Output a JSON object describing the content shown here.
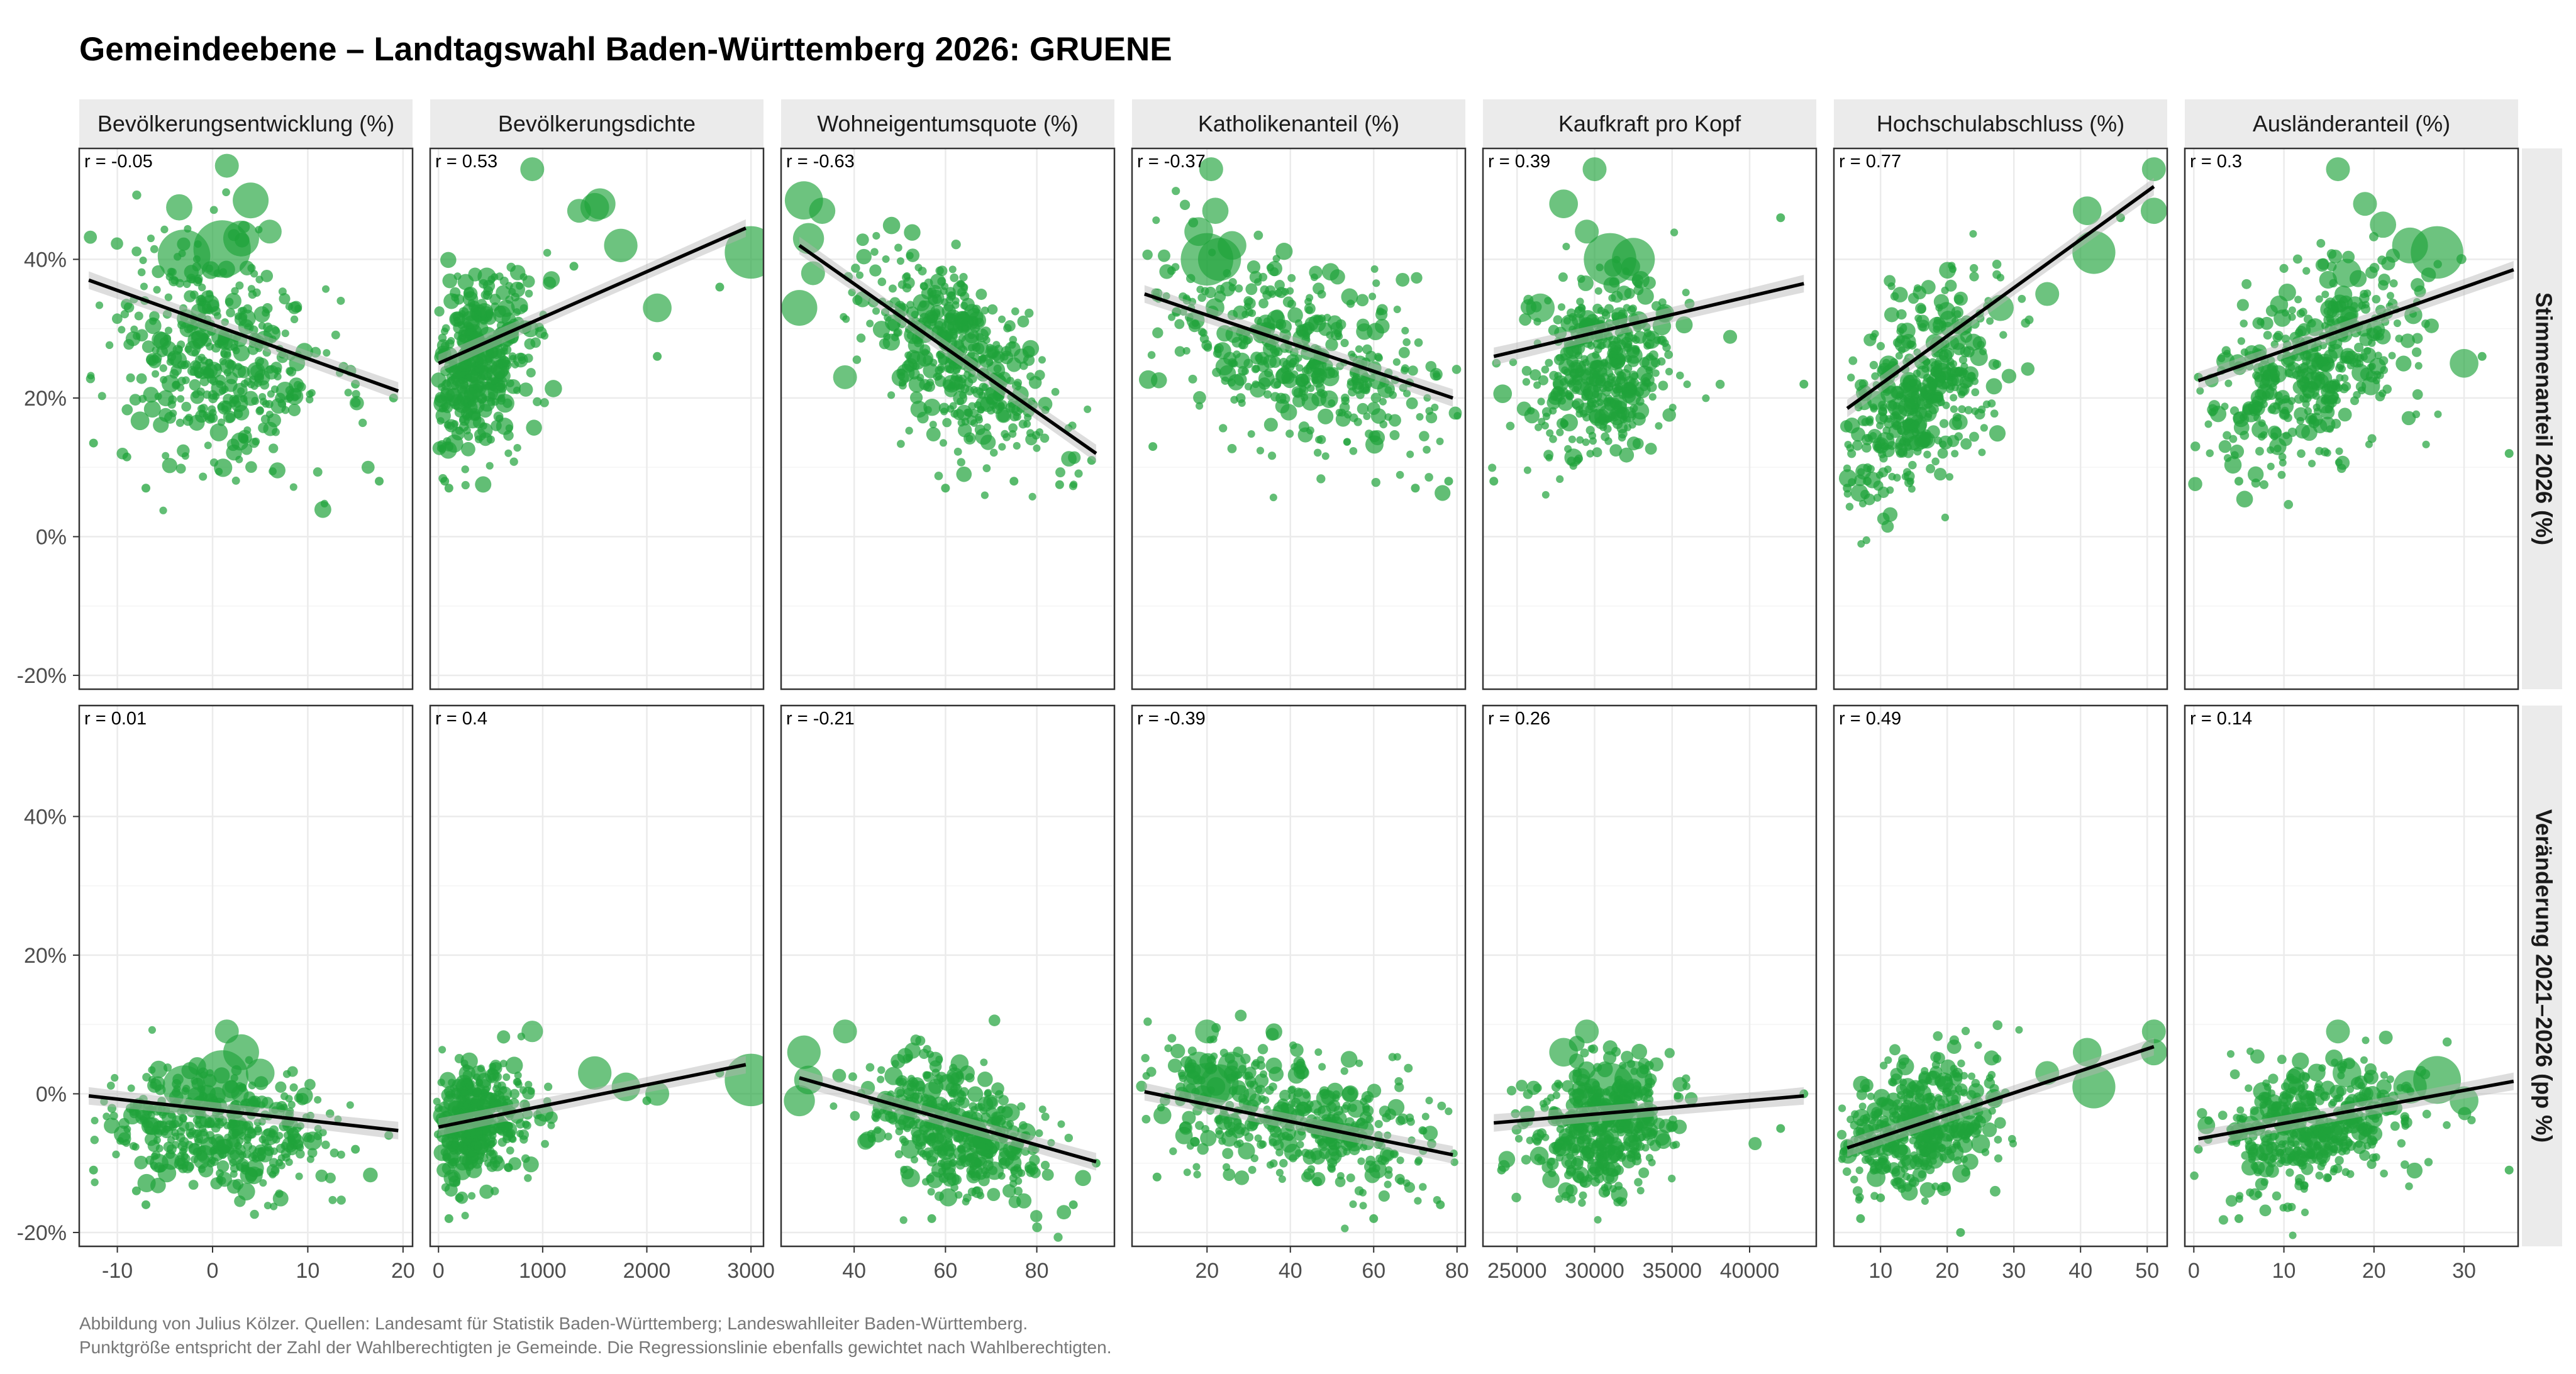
{
  "title": "Gemeindeebene – Landtagswahl Baden-Württemberg 2026: GRUENE",
  "caption_lines": [
    "Abbildung von Julius Kölzer. Quellen: Landesamt für Statistik Baden-Württemberg; Landeswahlleiter Baden-Württemberg.",
    "Punktgröße entspricht der Zahl der Wahlberechtigten je Gemeinde. Die Regressionslinie ebenfalls gewichtet nach Wahlberechtigten."
  ],
  "colors": {
    "points": "#1fa33a",
    "line": "#000000",
    "strip": "#ebebeb",
    "grid": "#ebebeb",
    "ribbon": "#b3b3b3"
  },
  "chart_data": {
    "type": "scatter",
    "facet_rows": [
      {
        "label": "Stimmenanteil 2026 (%)",
        "ylim": [
          -22,
          56
        ],
        "yticks": [
          -20,
          0,
          20,
          40
        ],
        "ytick_labels": [
          "-20%",
          "0%",
          "20%",
          "40%"
        ]
      },
      {
        "label": "Veränderung 2021–2026 (pp %)",
        "ylim": [
          -22,
          56
        ],
        "yticks": [
          -20,
          0,
          20,
          40
        ],
        "ytick_labels": [
          "-20%",
          "0%",
          "20%",
          "40%"
        ]
      }
    ],
    "facet_cols": [
      {
        "label": "Bevölkerungsentwicklung (%)",
        "xlim": [
          -14,
          21
        ],
        "xticks": [
          -10,
          0,
          10,
          20
        ],
        "xtick_labels": [
          "-10",
          "0",
          "10",
          "20"
        ],
        "r": [
          "r = -0.05",
          "r = 0.01"
        ],
        "fit": [
          {
            "x": [
              -13,
              19.5
            ],
            "y": [
              37,
              21
            ]
          },
          {
            "x": [
              -13,
              19.5
            ],
            "y": [
              -0.3,
              -5.3
            ]
          }
        ],
        "cloud": {
          "cx": 0.5,
          "sx": 5.5,
          "top": [
            26,
            7.5
          ],
          "bottom": [
            -5.5,
            4.5
          ]
        },
        "big_points": {
          "top": [
            [
              -3,
              40.5,
              22
            ],
            [
              1,
              41.5,
              24
            ],
            [
              3,
              43,
              15
            ],
            [
              -3.5,
              47.5,
              11
            ],
            [
              4,
              48.5,
              15
            ],
            [
              1.5,
              53.5,
              10
            ],
            [
              6,
              44,
              10
            ]
          ],
          "bottom": [
            [
              1,
              2.5,
              22
            ],
            [
              -3,
              1,
              18
            ],
            [
              3,
              6,
              15
            ],
            [
              1.5,
              9,
              10
            ],
            [
              5,
              3,
              12
            ]
          ]
        },
        "outliers": {
          "top": [
            [
              -12.5,
              13.5
            ],
            [
              -7,
              7
            ],
            [
              -9,
              11.5
            ],
            [
              17.5,
              8
            ],
            [
              15,
              22
            ],
            [
              19,
              20
            ]
          ],
          "bottom": [
            [
              -12.5,
              -11
            ],
            [
              -7,
              -16
            ],
            [
              18.5,
              -6
            ],
            [
              15,
              -8
            ],
            [
              -8,
              -14
            ]
          ]
        }
      },
      {
        "label": "Bevölkerungsdichte",
        "xlim": [
          -80,
          3120
        ],
        "xticks": [
          0,
          1000,
          2000,
          3000
        ],
        "xtick_labels": [
          "0",
          "1000",
          "2000",
          "3000"
        ],
        "r": [
          "r = 0.53",
          "r = 0.4"
        ],
        "fit": [
          {
            "x": [
              0,
              2950
            ],
            "y": [
              25,
              44.5
            ]
          },
          {
            "x": [
              0,
              2950
            ],
            "y": [
              -4.8,
              4.2
            ]
          }
        ],
        "cloud": {
          "cx": 350,
          "sx": 280,
          "top": [
            25,
            6
          ],
          "bottom": [
            -4,
            4
          ]
        },
        "big_points": {
          "top": [
            [
              1500,
              47.5,
              12
            ],
            [
              1550,
              48,
              13
            ],
            [
              1750,
              42,
              14
            ],
            [
              2100,
              33,
              12
            ],
            [
              3000,
              41,
              22
            ],
            [
              1350,
              47,
              10
            ],
            [
              900,
              53,
              10
            ]
          ],
          "bottom": [
            [
              1500,
              3,
              14
            ],
            [
              1800,
              1,
              12
            ],
            [
              2100,
              0,
              10
            ],
            [
              3000,
              2,
              22
            ],
            [
              900,
              9,
              9
            ]
          ]
        },
        "outliers": {
          "top": [
            [
              60,
              8
            ],
            [
              100,
              7
            ],
            [
              2100,
              26
            ],
            [
              2700,
              36
            ],
            [
              1300,
              39
            ]
          ],
          "bottom": [
            [
              100,
              -18
            ],
            [
              200,
              -15
            ],
            [
              2000,
              -1
            ],
            [
              2700,
              3
            ]
          ]
        }
      },
      {
        "label": "Wohneigentumsquote (%)",
        "xlim": [
          24,
          97
        ],
        "xticks": [
          40,
          60,
          80
        ],
        "xtick_labels": [
          "40",
          "60",
          "80"
        ],
        "r": [
          "r = -0.63",
          "r = -0.21"
        ],
        "fit": [
          {
            "x": [
              28,
              93
            ],
            "y": [
              42,
              12
            ]
          },
          {
            "x": [
              28,
              93
            ],
            "y": [
              2.3,
              -9.8
            ]
          }
        ],
        "cloud": {
          "cx": 62,
          "sx": 10,
          "top": [
            26,
            6
          ],
          "bottom": [
            -5,
            4.5
          ]
        },
        "big_points": {
          "top": [
            [
              29,
              48.5,
              16
            ],
            [
              28,
              33,
              15
            ],
            [
              30,
              43,
              13
            ],
            [
              33,
              47,
              11
            ],
            [
              38,
              23,
              10
            ],
            [
              31,
              38,
              10
            ]
          ],
          "bottom": [
            [
              29,
              6,
              14
            ],
            [
              28,
              -1,
              13
            ],
            [
              30,
              2,
              12
            ],
            [
              38,
              9,
              10
            ]
          ]
        },
        "outliers": {
          "top": [
            [
              85,
              7.5
            ],
            [
              92,
              11
            ],
            [
              60,
              7
            ],
            [
              75,
              8
            ]
          ],
          "bottom": [
            [
              88,
              -16
            ],
            [
              93,
              -10
            ],
            [
              57,
              -18
            ]
          ]
        }
      },
      {
        "label": "Katholikenanteil (%)",
        "xlim": [
          2,
          82
        ],
        "xticks": [
          20,
          40,
          60,
          80
        ],
        "xtick_labels": [
          "20",
          "40",
          "60",
          "80"
        ],
        "r": [
          "r = -0.37",
          "r = -0.39"
        ],
        "fit": [
          {
            "x": [
              5,
              79
            ],
            "y": [
              35,
              20
            ]
          },
          {
            "x": [
              5,
              79
            ],
            "y": [
              0.3,
              -8.8
            ]
          }
        ],
        "cloud": {
          "cx": 42,
          "sx": 18,
          "top": [
            26,
            6.5
          ],
          "bottom": [
            -4,
            4.5
          ]
        },
        "big_points": {
          "top": [
            [
              20,
              40,
              22
            ],
            [
              23,
              40,
              18
            ],
            [
              18,
              44,
              12
            ],
            [
              21,
              53,
              10
            ],
            [
              26,
              42,
              12
            ],
            [
              22,
              47,
              11
            ]
          ],
          "bottom": [
            [
              20,
              1,
              20
            ],
            [
              23,
              1.5,
              16
            ],
            [
              18,
              4,
              12
            ],
            [
              20,
              9,
              10
            ],
            [
              26,
              4,
              12
            ]
          ]
        },
        "outliers": {
          "top": [
            [
              78,
              8
            ],
            [
              70,
              7
            ],
            [
              7,
              13
            ]
          ],
          "bottom": [
            [
              76,
              -16
            ],
            [
              60,
              -18
            ],
            [
              8,
              -12
            ]
          ]
        }
      },
      {
        "label": "Kaufkraft pro Kopf",
        "xlim": [
          22800,
          44300
        ],
        "xticks": [
          25000,
          30000,
          35000,
          40000
        ],
        "xtick_labels": [
          "25000",
          "30000",
          "35000",
          "40000"
        ],
        "r": [
          "r = 0.39",
          "r = 0.26"
        ],
        "fit": [
          {
            "x": [
              23500,
              43500
            ],
            "y": [
              26,
              36.5
            ]
          },
          {
            "x": [
              23500,
              43500
            ],
            "y": [
              -4.2,
              -0.3
            ]
          }
        ],
        "cloud": {
          "cx": 30500,
          "sx": 2300,
          "top": [
            24,
            6
          ],
          "bottom": [
            -5,
            4.5
          ]
        },
        "big_points": {
          "top": [
            [
              31000,
              40,
              22
            ],
            [
              32500,
              40,
              18
            ],
            [
              28000,
              48,
              12
            ],
            [
              29500,
              44,
              10
            ],
            [
              30000,
              53,
              10
            ],
            [
              26500,
              33,
              12
            ]
          ],
          "bottom": [
            [
              31000,
              1,
              20
            ],
            [
              32500,
              2,
              16
            ],
            [
              28000,
              6,
              12
            ],
            [
              29500,
              9,
              10
            ]
          ]
        },
        "outliers": {
          "top": [
            [
              23500,
              8
            ],
            [
              43500,
              22
            ],
            [
              42000,
              46
            ]
          ],
          "bottom": [
            [
              24000,
              -11
            ],
            [
              43500,
              0
            ],
            [
              42000,
              -5
            ]
          ]
        }
      },
      {
        "label": "Hochschulabschluss (%)",
        "xlim": [
          3,
          53
        ],
        "xticks": [
          10,
          20,
          30,
          40,
          50
        ],
        "xtick_labels": [
          "10",
          "20",
          "30",
          "40",
          "50"
        ],
        "r": [
          "r = 0.77",
          "r = 0.49"
        ],
        "fit": [
          {
            "x": [
              5,
              51
            ],
            "y": [
              18.5,
              50.5
            ]
          },
          {
            "x": [
              5,
              51
            ],
            "y": [
              -7.8,
              6.8
            ]
          }
        ],
        "cloud": {
          "cx": 16,
          "sx": 6,
          "top": [
            20.5,
            6.5
          ],
          "bottom": [
            -4.5,
            4.5
          ]
        },
        "big_points": {
          "top": [
            [
              42,
              41,
              18
            ],
            [
              41,
              47,
              12
            ],
            [
              51,
              47,
              11
            ],
            [
              51,
              53,
              10
            ],
            [
              35,
              35,
              10
            ],
            [
              28,
              33,
              11
            ]
          ],
          "bottom": [
            [
              42,
              1,
              18
            ],
            [
              41,
              6,
              12
            ],
            [
              51,
              6,
              11
            ],
            [
              51,
              9,
              10
            ],
            [
              35,
              3,
              10
            ]
          ]
        },
        "outliers": {
          "top": [
            [
              5,
              7
            ],
            [
              8,
              8
            ],
            [
              46,
              46
            ]
          ],
          "bottom": [
            [
              7,
              -18
            ],
            [
              10,
              -15
            ],
            [
              22,
              -20
            ]
          ]
        }
      },
      {
        "label": "Ausländeranteil (%)",
        "xlim": [
          -1,
          36
        ],
        "xticks": [
          0,
          10,
          20,
          30
        ],
        "xtick_labels": [
          "0",
          "10",
          "20",
          "30"
        ],
        "r": [
          "r = 0.3",
          "r = 0.14"
        ],
        "fit": [
          {
            "x": [
              0.5,
              35.5
            ],
            "y": [
              22.5,
              38.5
            ]
          },
          {
            "x": [
              0.5,
              35.5
            ],
            "y": [
              -6.5,
              1.8
            ]
          }
        ],
        "cloud": {
          "cx": 13,
          "sx": 6,
          "top": [
            24,
            6.5
          ],
          "bottom": [
            -5,
            4.5
          ]
        },
        "big_points": {
          "top": [
            [
              27,
              41,
              22
            ],
            [
              24,
              42,
              15
            ],
            [
              17,
              38,
              12
            ],
            [
              21,
              45,
              11
            ],
            [
              16,
              53,
              10
            ],
            [
              19,
              48,
              10
            ],
            [
              30,
              25,
              12
            ]
          ],
          "bottom": [
            [
              27,
              2,
              20
            ],
            [
              24,
              1,
              14
            ],
            [
              17,
              3,
              12
            ],
            [
              16,
              9,
              10
            ],
            [
              30,
              -1,
              12
            ]
          ]
        },
        "outliers": {
          "top": [
            [
              0.5,
              23
            ],
            [
              35,
              12
            ],
            [
              32,
              26
            ],
            [
              5,
              8
            ]
          ],
          "bottom": [
            [
              35,
              -11
            ],
            [
              0.5,
              -8
            ],
            [
              5,
              -18
            ]
          ]
        }
      }
    ]
  }
}
